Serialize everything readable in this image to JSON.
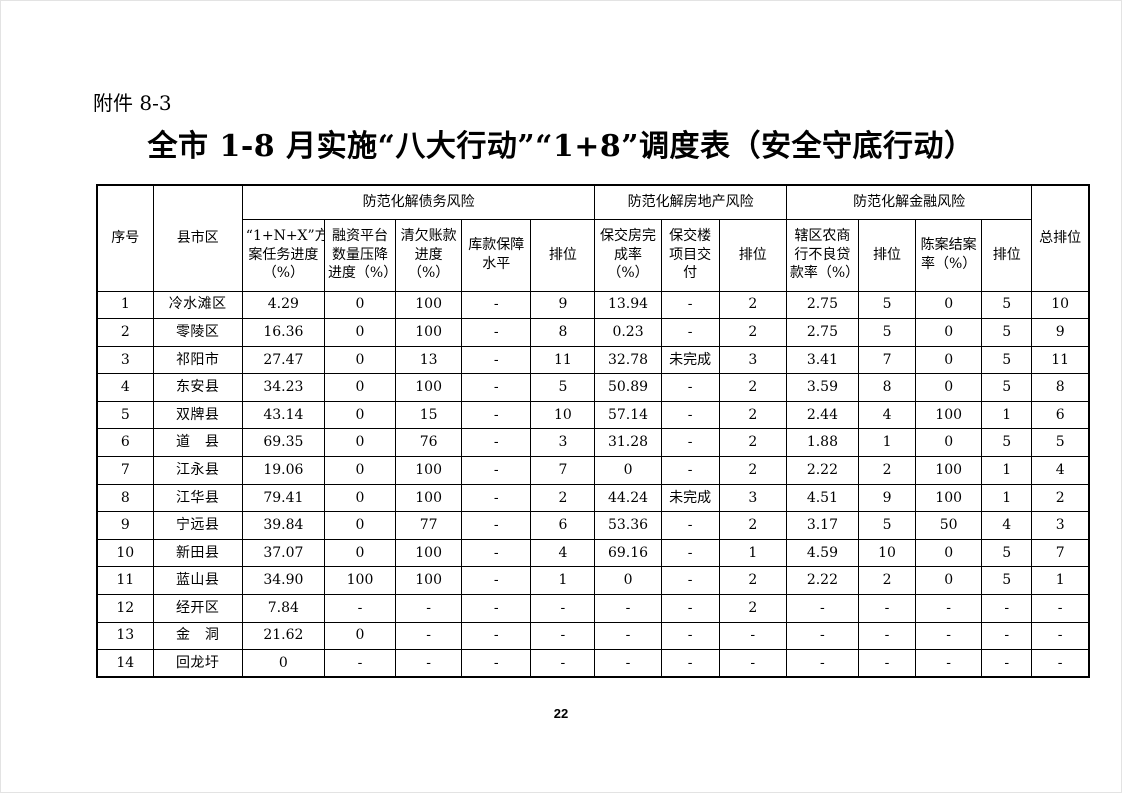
{
  "attachment_label": "附件 8-3",
  "title": "全市 1-8 月实施“八大行动”“1+8”调度表（安全守底行动）",
  "page_number": "22",
  "table": {
    "corner_headers": {
      "index": "序号",
      "region": "县市区",
      "overall_rank": "总排位"
    },
    "groups": [
      {
        "label": "防范化解债务风险",
        "columns": [
          "“1+N+X”方案任务进度（%）",
          "融资平台数量压降进度（%）",
          "清欠账款进度（%）",
          "库款保障水平",
          "排位"
        ]
      },
      {
        "label": "防范化解房地产风险",
        "columns": [
          "保交房完成率（%）",
          "保交楼项目交付",
          "排位"
        ]
      },
      {
        "label": "防范化解金融风险",
        "columns": [
          "辖区农商行不良贷款率（%）",
          "排位",
          "陈案结案率（%）",
          "排位"
        ]
      }
    ],
    "rows": [
      [
        "1",
        "冷水滩区",
        "4.29",
        "0",
        "100",
        "-",
        "9",
        "13.94",
        "-",
        "2",
        "2.75",
        "5",
        "0",
        "5",
        "10"
      ],
      [
        "2",
        "零陵区",
        "16.36",
        "0",
        "100",
        "-",
        "8",
        "0.23",
        "-",
        "2",
        "2.75",
        "5",
        "0",
        "5",
        "9"
      ],
      [
        "3",
        "祁阳市",
        "27.47",
        "0",
        "13",
        "-",
        "11",
        "32.78",
        "未完成",
        "3",
        "3.41",
        "7",
        "0",
        "5",
        "11"
      ],
      [
        "4",
        "东安县",
        "34.23",
        "0",
        "100",
        "-",
        "5",
        "50.89",
        "-",
        "2",
        "3.59",
        "8",
        "0",
        "5",
        "8"
      ],
      [
        "5",
        "双牌县",
        "43.14",
        "0",
        "15",
        "-",
        "10",
        "57.14",
        "-",
        "2",
        "2.44",
        "4",
        "100",
        "1",
        "6"
      ],
      [
        "6",
        "道　县",
        "69.35",
        "0",
        "76",
        "-",
        "3",
        "31.28",
        "-",
        "2",
        "1.88",
        "1",
        "0",
        "5",
        "5"
      ],
      [
        "7",
        "江永县",
        "19.06",
        "0",
        "100",
        "-",
        "7",
        "0",
        "-",
        "2",
        "2.22",
        "2",
        "100",
        "1",
        "4"
      ],
      [
        "8",
        "江华县",
        "79.41",
        "0",
        "100",
        "-",
        "2",
        "44.24",
        "未完成",
        "3",
        "4.51",
        "9",
        "100",
        "1",
        "2"
      ],
      [
        "9",
        "宁远县",
        "39.84",
        "0",
        "77",
        "-",
        "6",
        "53.36",
        "-",
        "2",
        "3.17",
        "5",
        "50",
        "4",
        "3"
      ],
      [
        "10",
        "新田县",
        "37.07",
        "0",
        "100",
        "-",
        "4",
        "69.16",
        "-",
        "1",
        "4.59",
        "10",
        "0",
        "5",
        "7"
      ],
      [
        "11",
        "蓝山县",
        "34.90",
        "100",
        "100",
        "-",
        "1",
        "0",
        "-",
        "2",
        "2.22",
        "2",
        "0",
        "5",
        "1"
      ],
      [
        "12",
        "经开区",
        "7.84",
        "-",
        "-",
        "-",
        "-",
        "-",
        "-",
        "2",
        "-",
        "-",
        "-",
        "-",
        "-"
      ],
      [
        "13",
        "金　洞",
        "21.62",
        "0",
        "-",
        "-",
        "-",
        "-",
        "-",
        "-",
        "-",
        "-",
        "-",
        "-",
        "-"
      ],
      [
        "14",
        "回龙圩",
        "0",
        "-",
        "-",
        "-",
        "-",
        "-",
        "-",
        "-",
        "-",
        "-",
        "-",
        "-",
        "-"
      ]
    ]
  }
}
